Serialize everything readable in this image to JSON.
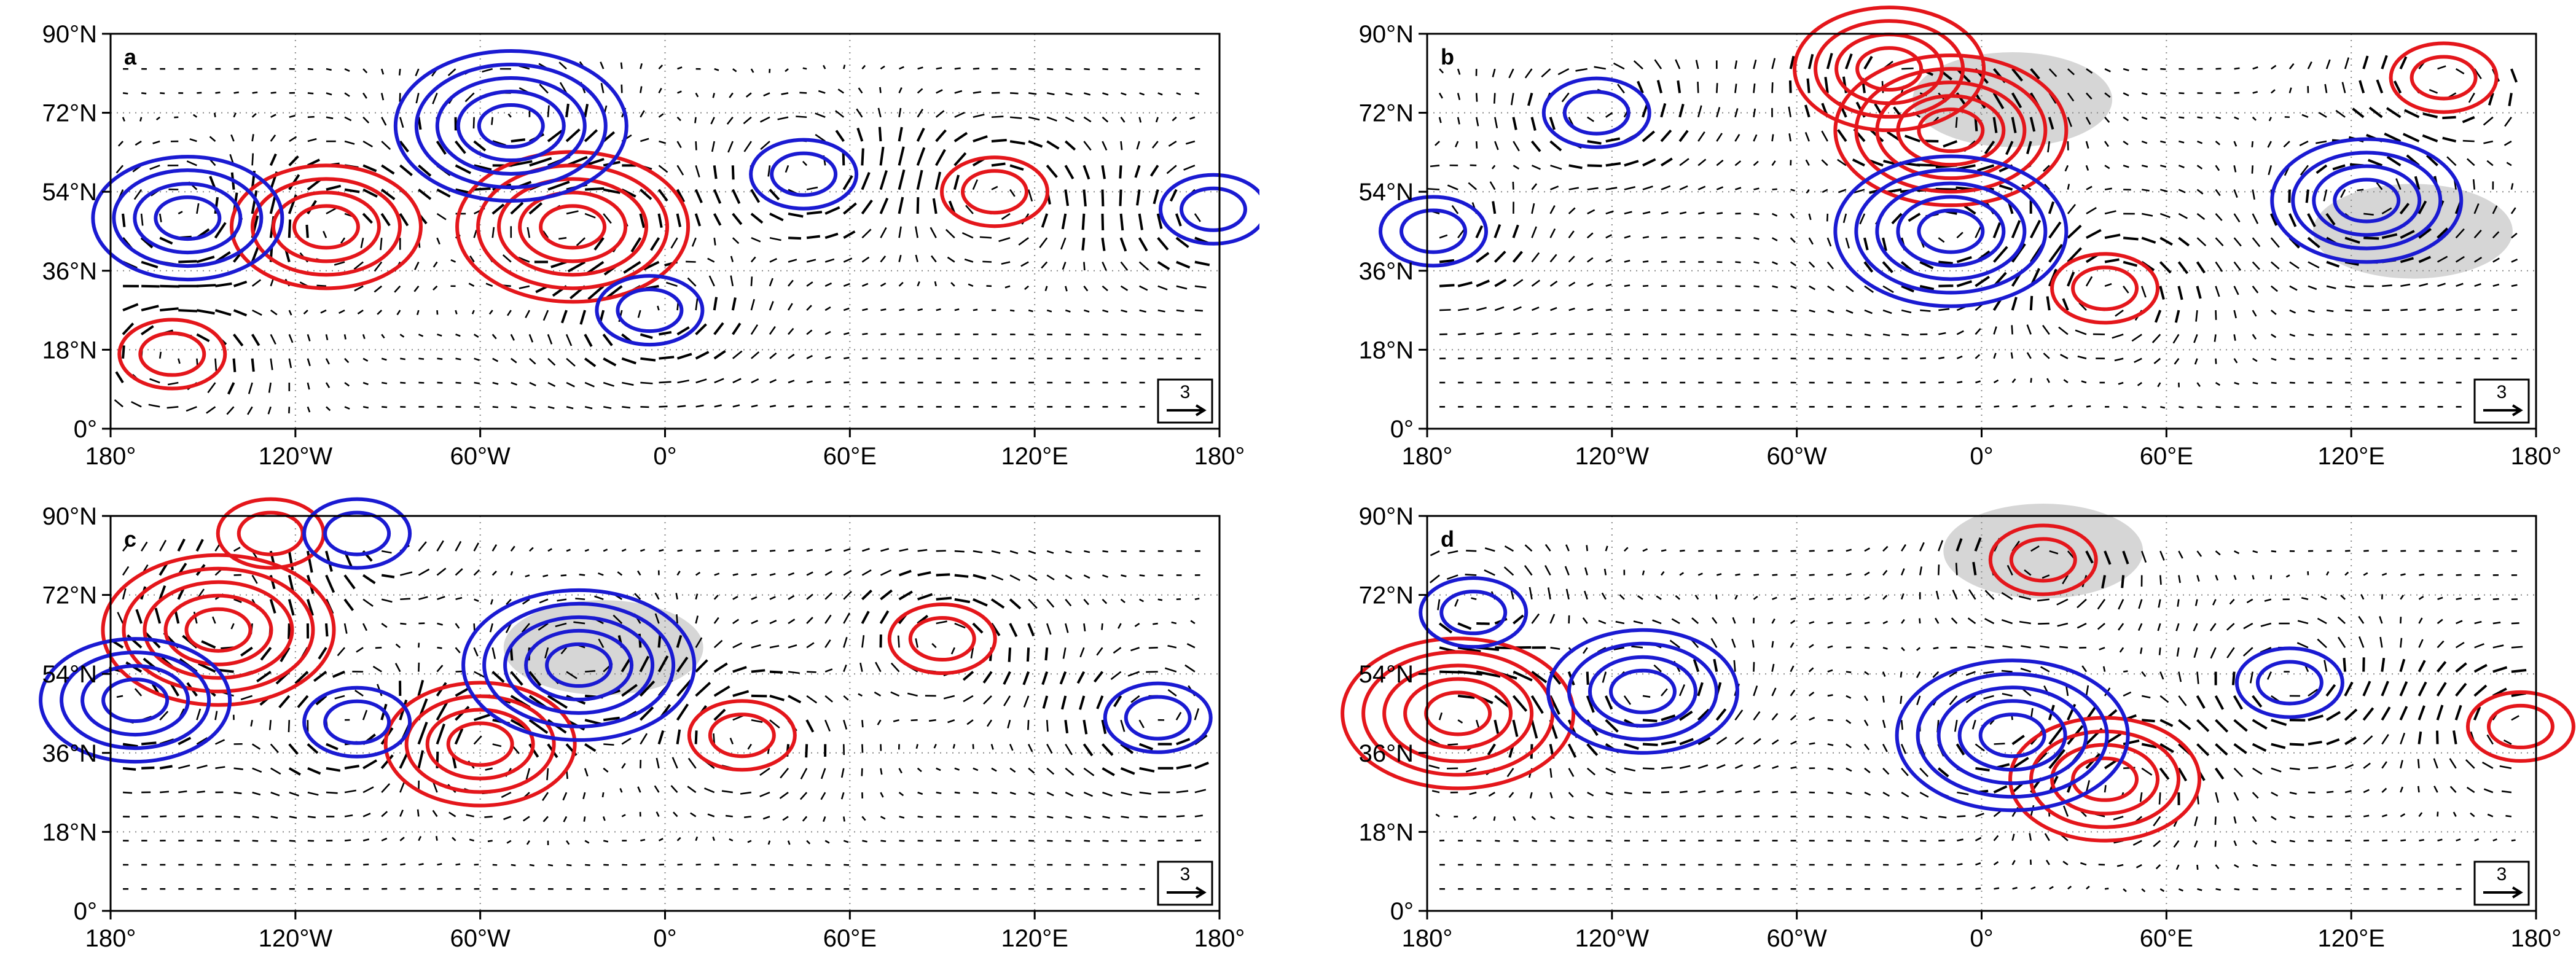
{
  "lat_labels": [
    "90°N",
    "72°N",
    "54°N",
    "36°N",
    "18°N",
    "0°"
  ],
  "lon_labels": [
    "180°",
    "120°W",
    "60°W",
    "0°",
    "60°E",
    "120°E",
    "180°"
  ],
  "lon_values": [
    -180,
    -120,
    -60,
    0,
    60,
    120,
    180
  ],
  "lat_values": [
    90,
    72,
    54,
    36,
    18,
    0
  ],
  "vector_scale_value": "3",
  "colors": {
    "positive": "#e4161b",
    "negative": "#1a1ad2",
    "shade": "#cfcfcf",
    "vector": "#000000",
    "grid": "#888888"
  },
  "panels": [
    {
      "letter": "a",
      "positive_centers": [
        [
          -30,
          46
        ],
        [
          -110,
          46
        ],
        [
          107,
          54
        ],
        [
          -160,
          17
        ]
      ],
      "negative_centers": [
        [
          -50,
          69
        ],
        [
          -155,
          48
        ],
        [
          45,
          58
        ],
        [
          -5,
          27
        ],
        [
          178,
          50
        ]
      ],
      "shaded_regions": []
    },
    {
      "letter": "b",
      "positive_centers": [
        [
          -10,
          68
        ],
        [
          -30,
          82
        ],
        [
          150,
          80
        ],
        [
          40,
          32
        ]
      ],
      "negative_centers": [
        [
          -10,
          45
        ],
        [
          125,
          52
        ],
        [
          -178,
          45
        ],
        [
          -125,
          72
        ]
      ],
      "shaded_regions": [
        [
          10,
          75
        ],
        [
          140,
          45
        ]
      ]
    },
    {
      "letter": "c",
      "positive_centers": [
        [
          -145,
          64
        ],
        [
          -60,
          38
        ],
        [
          25,
          40
        ],
        [
          90,
          62
        ],
        [
          -128,
          86
        ]
      ],
      "negative_centers": [
        [
          -28,
          56
        ],
        [
          -172,
          48
        ],
        [
          -100,
          43
        ],
        [
          160,
          44
        ],
        [
          -100,
          86
        ]
      ],
      "shaded_regions": [
        [
          -20,
          60
        ]
      ]
    },
    {
      "letter": "d",
      "positive_centers": [
        [
          -170,
          45
        ],
        [
          40,
          30
        ],
        [
          20,
          80
        ],
        [
          175,
          42
        ]
      ],
      "negative_centers": [
        [
          10,
          40
        ],
        [
          -110,
          50
        ],
        [
          100,
          52
        ],
        [
          -165,
          68
        ]
      ],
      "shaded_regions": [
        [
          20,
          82
        ]
      ]
    }
  ]
}
